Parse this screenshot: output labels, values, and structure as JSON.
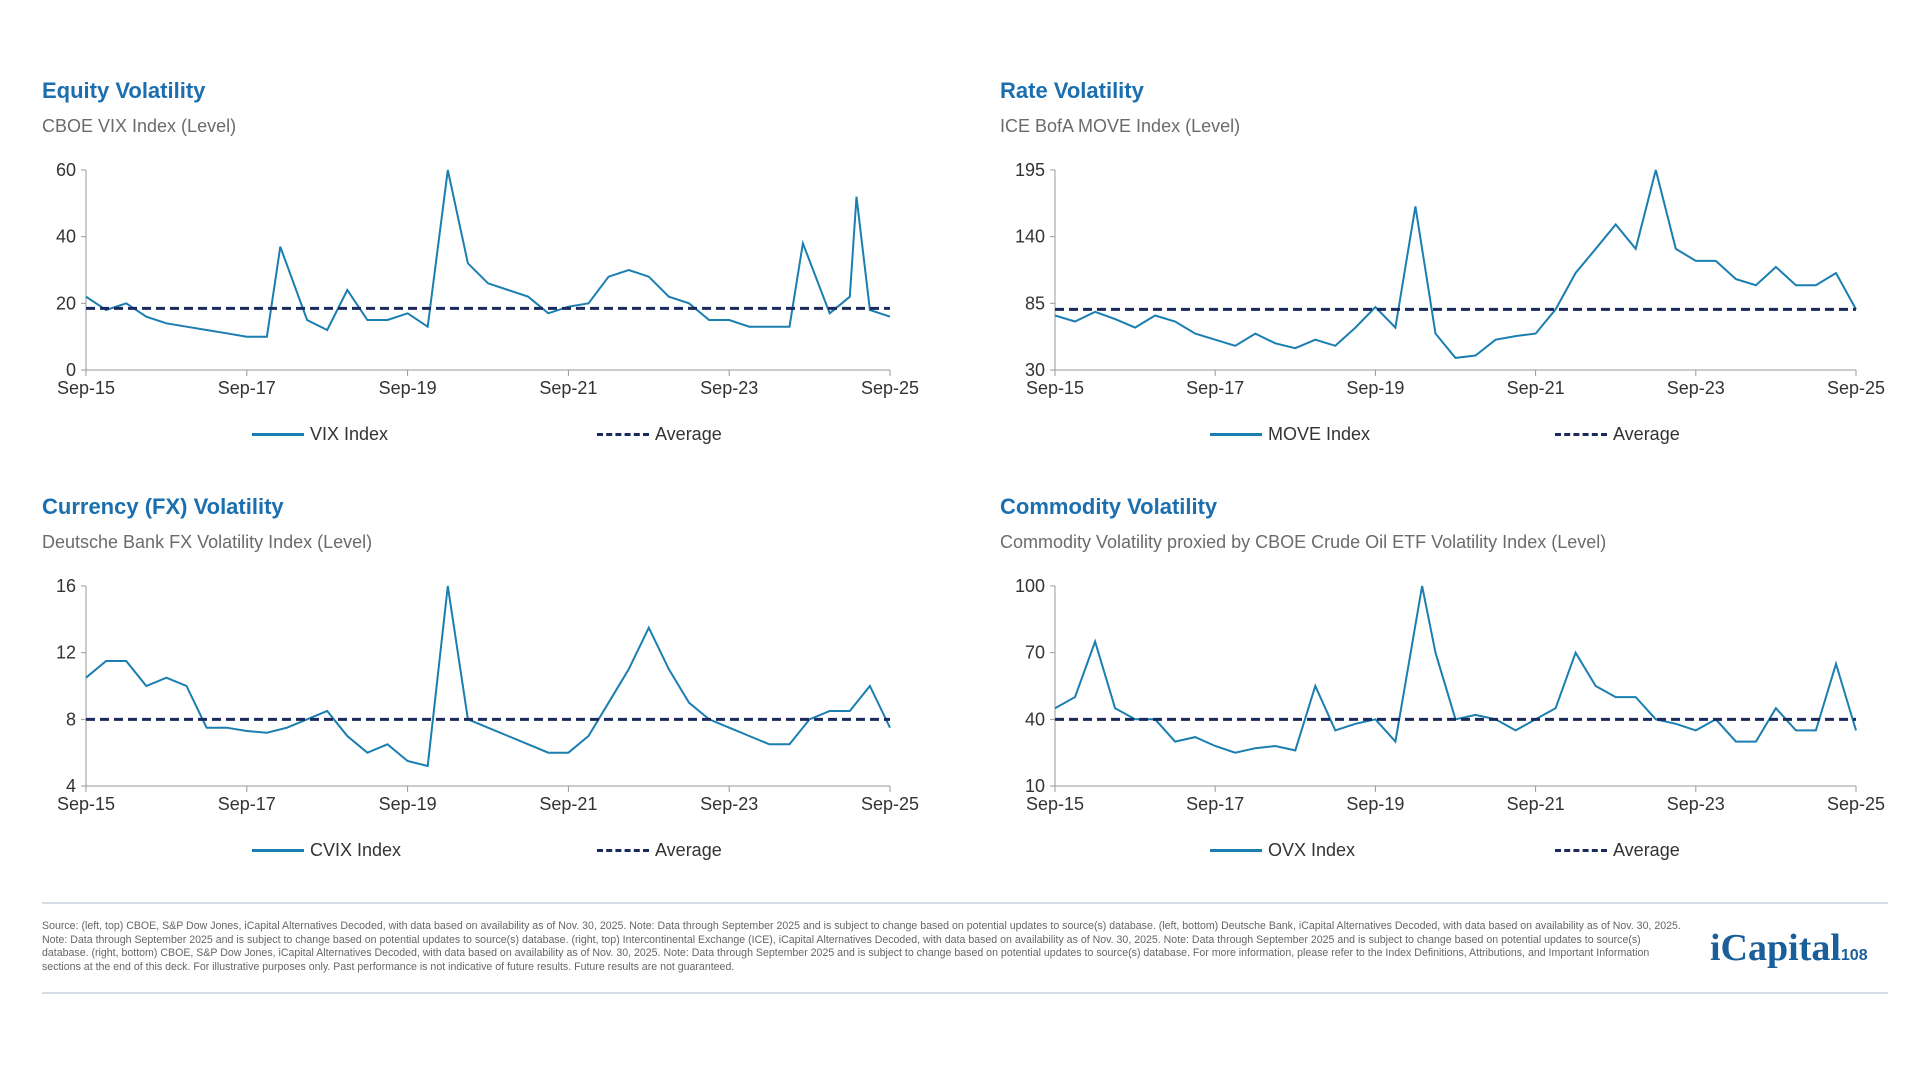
{
  "colors": {
    "series": "#1a7fb0",
    "average": "#1b2a5c",
    "title": "#1c6fae"
  },
  "chart_data": [
    {
      "type": "line",
      "title": "Equity Volatility",
      "subtitle": "CBOE VIX Index (Level)",
      "ylim": [
        0,
        60
      ],
      "yticks": [
        "0",
        "20",
        "40",
        "60"
      ],
      "xticks": [
        "Sep-15",
        "Sep-17",
        "Sep-19",
        "Sep-21",
        "Sep-23",
        "Sep-25"
      ],
      "grid": false,
      "legend": "bottom",
      "series": [
        {
          "name": "VIX Index",
          "dates": [
            "2015-09",
            "2015-12",
            "2016-03",
            "2016-06",
            "2016-09",
            "2016-12",
            "2017-03",
            "2017-06",
            "2017-09",
            "2017-12",
            "2018-02",
            "2018-06",
            "2018-09",
            "2018-12",
            "2019-03",
            "2019-06",
            "2019-09",
            "2019-12",
            "2020-03",
            "2020-06",
            "2020-09",
            "2020-12",
            "2021-03",
            "2021-06",
            "2021-09",
            "2021-12",
            "2022-03",
            "2022-06",
            "2022-09",
            "2022-12",
            "2023-03",
            "2023-06",
            "2023-09",
            "2023-12",
            "2024-03",
            "2024-06",
            "2024-08",
            "2024-12",
            "2025-03",
            "2025-04",
            "2025-06",
            "2025-09"
          ],
          "values": [
            22,
            18,
            20,
            16,
            14,
            13,
            12,
            11,
            10,
            10,
            37,
            15,
            12,
            24,
            15,
            15,
            17,
            13,
            60,
            32,
            26,
            24,
            22,
            17,
            19,
            20,
            28,
            30,
            28,
            22,
            20,
            15,
            15,
            13,
            13,
            13,
            38,
            17,
            22,
            52,
            18,
            16
          ]
        },
        {
          "name": "Average",
          "value": 18.5
        }
      ]
    },
    {
      "type": "line",
      "title": "Rate Volatility",
      "subtitle": "ICE BofA MOVE Index (Level)",
      "ylim": [
        30,
        195
      ],
      "yticks": [
        "30",
        "85",
        "140",
        "195"
      ],
      "xticks": [
        "Sep-15",
        "Sep-17",
        "Sep-19",
        "Sep-21",
        "Sep-23",
        "Sep-25"
      ],
      "grid": false,
      "legend": "bottom",
      "series": [
        {
          "name": "MOVE Index",
          "dates": [
            "2015-09",
            "2015-12",
            "2016-03",
            "2016-06",
            "2016-09",
            "2016-12",
            "2017-03",
            "2017-06",
            "2017-09",
            "2017-12",
            "2018-03",
            "2018-06",
            "2018-09",
            "2018-12",
            "2019-03",
            "2019-06",
            "2019-09",
            "2019-12",
            "2020-03",
            "2020-06",
            "2020-09",
            "2020-12",
            "2021-03",
            "2021-06",
            "2021-09",
            "2021-12",
            "2022-03",
            "2022-06",
            "2022-09",
            "2022-12",
            "2023-03",
            "2023-06",
            "2023-09",
            "2023-12",
            "2024-03",
            "2024-06",
            "2024-09",
            "2024-12",
            "2025-03",
            "2025-06",
            "2025-09"
          ],
          "values": [
            75,
            70,
            78,
            72,
            65,
            75,
            70,
            60,
            55,
            50,
            60,
            52,
            48,
            55,
            50,
            65,
            82,
            65,
            165,
            60,
            40,
            42,
            55,
            58,
            60,
            80,
            110,
            130,
            150,
            130,
            195,
            130,
            120,
            120,
            105,
            100,
            115,
            100,
            100,
            110,
            80
          ]
        },
        {
          "name": "Average",
          "value": 80
        }
      ]
    },
    {
      "type": "line",
      "title": "Currency (FX) Volatility",
      "subtitle": "Deutsche Bank FX Volatility Index (Level)",
      "ylim": [
        4,
        16
      ],
      "yticks": [
        "4",
        "8",
        "12",
        "16"
      ],
      "xticks": [
        "Sep-15",
        "Sep-17",
        "Sep-19",
        "Sep-21",
        "Sep-23",
        "Sep-25"
      ],
      "grid": false,
      "legend": "bottom",
      "series": [
        {
          "name": "CVIX Index",
          "dates": [
            "2015-09",
            "2015-12",
            "2016-03",
            "2016-06",
            "2016-09",
            "2016-12",
            "2017-03",
            "2017-06",
            "2017-09",
            "2017-12",
            "2018-03",
            "2018-06",
            "2018-09",
            "2018-12",
            "2019-03",
            "2019-06",
            "2019-09",
            "2019-12",
            "2020-03",
            "2020-06",
            "2020-09",
            "2020-12",
            "2021-03",
            "2021-06",
            "2021-09",
            "2021-12",
            "2022-03",
            "2022-06",
            "2022-09",
            "2022-12",
            "2023-03",
            "2023-06",
            "2023-09",
            "2023-12",
            "2024-03",
            "2024-06",
            "2024-09",
            "2024-12",
            "2025-03",
            "2025-06",
            "2025-09"
          ],
          "values": [
            10.5,
            11.5,
            11.5,
            10,
            10.5,
            10,
            7.5,
            7.5,
            7.3,
            7.2,
            7.5,
            8,
            8.5,
            7,
            6,
            6.5,
            5.5,
            5.2,
            16,
            8,
            7.5,
            7,
            6.5,
            6,
            6,
            7,
            9,
            11,
            13.5,
            11,
            9,
            8,
            7.5,
            7,
            6.5,
            6.5,
            8,
            8.5,
            8.5,
            10,
            7.5
          ]
        },
        {
          "name": "Average",
          "value": 8
        }
      ]
    },
    {
      "type": "line",
      "title": "Commodity Volatility",
      "subtitle": "Commodity Volatility proxied by CBOE Crude Oil ETF Volatility Index (Level)",
      "ylim": [
        10,
        100
      ],
      "yticks": [
        "10",
        "40",
        "70",
        "100"
      ],
      "xticks": [
        "Sep-15",
        "Sep-17",
        "Sep-19",
        "Sep-21",
        "Sep-23",
        "Sep-25"
      ],
      "grid": false,
      "legend": "bottom",
      "series": [
        {
          "name": "OVX Index",
          "dates": [
            "2015-09",
            "2015-12",
            "2016-03",
            "2016-06",
            "2016-09",
            "2016-12",
            "2017-03",
            "2017-06",
            "2017-09",
            "2017-12",
            "2018-03",
            "2018-06",
            "2018-09",
            "2018-12",
            "2019-03",
            "2019-06",
            "2019-09",
            "2019-12",
            "2020-04",
            "2020-06",
            "2020-09",
            "2020-12",
            "2021-03",
            "2021-06",
            "2021-09",
            "2021-12",
            "2022-03",
            "2022-06",
            "2022-09",
            "2022-12",
            "2023-03",
            "2023-06",
            "2023-09",
            "2023-12",
            "2024-03",
            "2024-06",
            "2024-09",
            "2024-12",
            "2025-03",
            "2025-06",
            "2025-09"
          ],
          "values": [
            45,
            50,
            75,
            45,
            40,
            40,
            30,
            32,
            28,
            25,
            27,
            28,
            26,
            55,
            35,
            38,
            40,
            30,
            100,
            70,
            40,
            42,
            40,
            35,
            40,
            45,
            70,
            55,
            50,
            50,
            40,
            38,
            35,
            40,
            30,
            30,
            45,
            35,
            35,
            65,
            35
          ]
        },
        {
          "name": "Average",
          "value": 40
        }
      ]
    }
  ],
  "footer": {
    "source": "Source: (left, top) CBOE, S&P Dow Jones, iCapital Alternatives Decoded, with data based on availability as of Nov. 30, 2025. Note: Data through September 2025 and is subject to change based on potential updates to source(s) database. (left, bottom) Deutsche Bank, iCapital Alternatives Decoded, with data based on availability as of Nov. 30, 2025. Note: Data through September 2025 and is subject to change based on potential updates to source(s) database. (right, top) Intercontinental Exchange (ICE), iCapital Alternatives Decoded, with data based on availability as of Nov. 30, 2025. Note: Data through September 2025 and is subject to change based on potential updates to source(s) database. (right, bottom) CBOE, S&P Dow Jones, iCapital Alternatives Decoded, with data based on availability as of Nov. 30, 2025. Note: Data through September 2025 and is subject to change based on potential updates to source(s) database. For more information, please refer to the Index Definitions, Attributions, and Important Information sections at the end of this deck. For illustrative purposes only. Past performance is not indicative of future results. Future results are not guaranteed.",
    "logo": "iCapital",
    "page": "108"
  }
}
